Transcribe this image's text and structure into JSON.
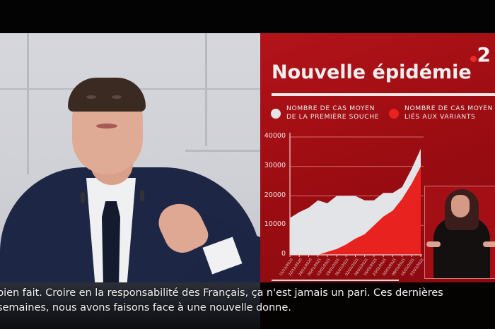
{
  "broadcast": {
    "channel_logo": "2",
    "graphic_title": "Nouvelle épidémie",
    "legend": [
      {
        "label_line1": "NOMBRE DE CAS MOYEN",
        "label_line2": "DE LA PREMIÈRE SOUCHE",
        "color": "#e3e4e8"
      },
      {
        "label_line1": "NOMBRE DE CAS MOYEN",
        "label_line2": "LIÉS AUX VARIANTS",
        "color": "#e8231f"
      }
    ],
    "subtitles": {
      "line1": "bien fait. Croire en la responsabilité des Français, ça n'est jamais un pari. Ces dernières",
      "line2": "semaines, nous avons faisons face à une nouvelle donne."
    },
    "colors": {
      "panel_red": "#a00e13",
      "variant_red": "#e8231f",
      "first_strain_white": "#e3e4e8"
    }
  },
  "chart_data": {
    "type": "area",
    "title": "Nouvelle épidémie",
    "xlabel": "",
    "ylabel": "",
    "categories": [
      "15/12/2020",
      "22/12/2020",
      "29/12/2020",
      "05/01/2021",
      "12/01/2021",
      "19/01/2021",
      "26/01/2021",
      "02/02/2021",
      "09/02/2021",
      "16/02/2021",
      "23/02/2021",
      "02/03/2021",
      "09/03/2021",
      "16/03/2021",
      "23/03/2021"
    ],
    "series": [
      {
        "name": "Nombre de cas moyen de la première souche",
        "values": [
          12500,
          14500,
          16000,
          18500,
          17500,
          20000,
          20000,
          20000,
          18500,
          18500,
          21000,
          21000,
          23000,
          29000,
          36000
        ]
      },
      {
        "name": "Nombre de cas moyen liés aux variants",
        "values": [
          0,
          0,
          0,
          0,
          1000,
          2000,
          3500,
          5500,
          7000,
          10000,
          13000,
          15000,
          19000,
          24000,
          30000
        ]
      }
    ],
    "yticks": [
      0,
      10000,
      20000,
      30000,
      40000
    ],
    "ylim": [
      0,
      40000
    ],
    "grid": true,
    "legend_position": "top",
    "stacked": false
  }
}
